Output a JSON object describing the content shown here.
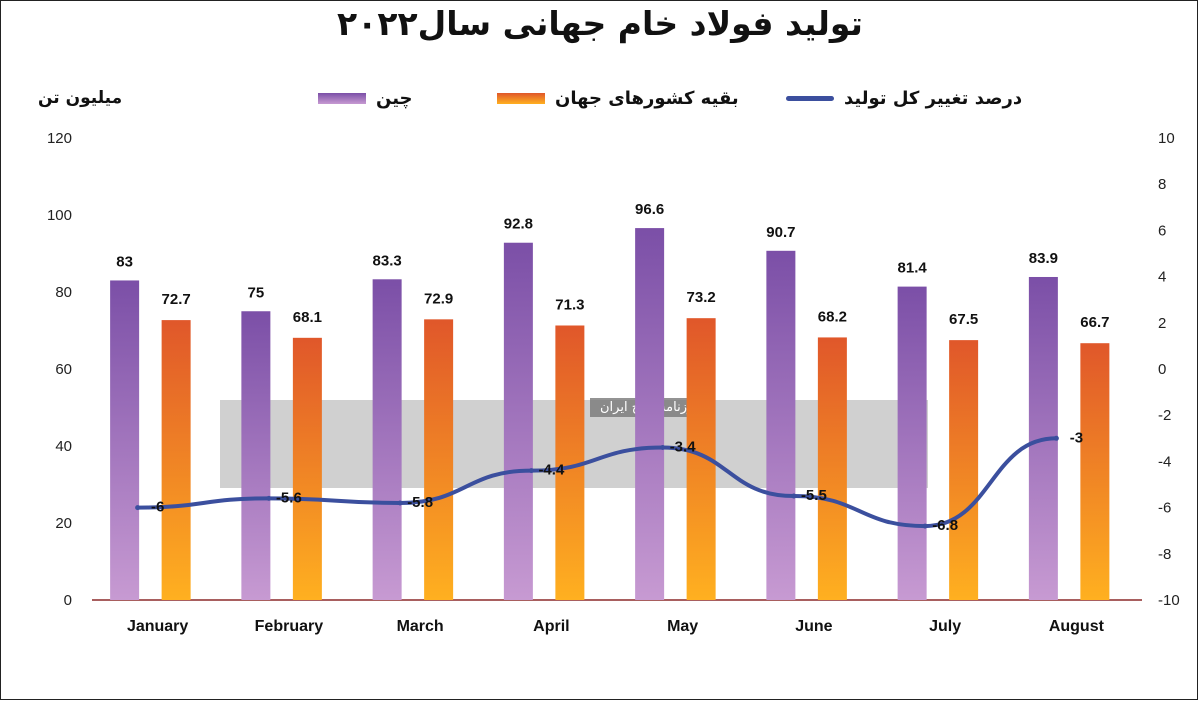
{
  "title": "تولید فولاد خام جهانی سال۲۰۲۲",
  "y_unit_label": "میلیون تن",
  "watermark_text": "روزنامه صبح ایران",
  "legend": {
    "china": "چین",
    "rest": "بقیه کشورهای جهان",
    "change": "درصد تغییر کل تولید"
  },
  "colors": {
    "china_top": "#7b4fa7",
    "china_bottom": "#c79ad2",
    "rest_top": "#e0572a",
    "rest_bottom": "#ffb020",
    "line": "#3b4f9e",
    "axis": "#8b2a2a"
  },
  "chart_data": {
    "type": "bar",
    "categories": [
      "January",
      "February",
      "March",
      "April",
      "May",
      "June",
      "July",
      "August"
    ],
    "series": [
      {
        "name": "چین",
        "type": "bar",
        "axis": "left",
        "values": [
          83,
          75,
          83.3,
          92.8,
          96.6,
          90.7,
          81.4,
          83.9
        ]
      },
      {
        "name": "بقیه کشورهای جهان",
        "type": "bar",
        "axis": "left",
        "values": [
          72.7,
          68.1,
          72.9,
          71.3,
          73.2,
          68.2,
          67.5,
          66.7
        ]
      },
      {
        "name": "درصد تغییر کل تولید",
        "type": "line",
        "axis": "right",
        "values": [
          -6,
          -5.6,
          -5.8,
          -4.4,
          -3.4,
          -5.5,
          -6.8,
          -3
        ]
      }
    ],
    "ylabel": "میلیون تن",
    "ylim": [
      0,
      120
    ],
    "yticks": [
      "0",
      "20",
      "40",
      "60",
      "80",
      "100",
      "120"
    ],
    "y2lim": [
      -10,
      10
    ],
    "y2ticks": [
      "-10",
      "-8",
      "-6",
      "-4",
      "-2",
      "0",
      "2",
      "4",
      "6",
      "8",
      "10"
    ],
    "grid": false,
    "legend_position": "top"
  }
}
